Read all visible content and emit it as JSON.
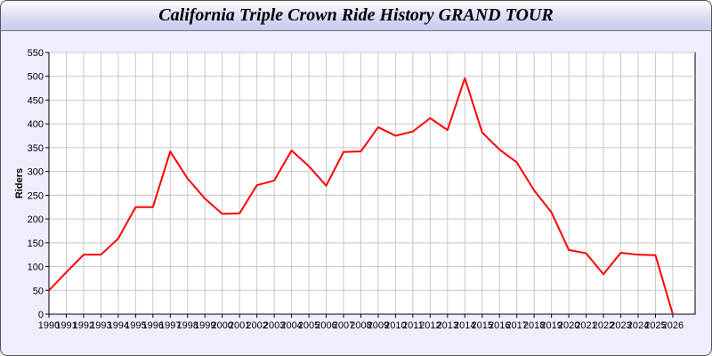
{
  "chart_data": {
    "type": "line",
    "title": "California Triple Crown Ride History GRAND TOUR",
    "xlabel": "",
    "ylabel": "Riders",
    "ylim": [
      0,
      550
    ],
    "xlim": [
      1990,
      2026
    ],
    "yticks": [
      0,
      50,
      100,
      150,
      200,
      250,
      300,
      350,
      400,
      450,
      500,
      550
    ],
    "grid": true,
    "line_color": "#ff0000",
    "x": [
      1990,
      1991,
      1992,
      1993,
      1994,
      1995,
      1996,
      1997,
      1998,
      1999,
      2000,
      2001,
      2002,
      2003,
      2004,
      2005,
      2006,
      2007,
      2008,
      2009,
      2010,
      2011,
      2012,
      2013,
      2014,
      2015,
      2016,
      2017,
      2018,
      2019,
      2020,
      2021,
      2022,
      2023,
      2024,
      2025,
      2026
    ],
    "values": [
      50,
      88,
      125,
      125,
      159,
      225,
      225,
      342,
      285,
      243,
      211,
      212,
      271,
      281,
      344,
      311,
      270,
      341,
      342,
      393,
      375,
      384,
      412,
      387,
      496,
      382,
      346,
      319,
      260,
      214,
      135,
      128,
      84,
      129,
      125,
      124,
      0
    ]
  }
}
